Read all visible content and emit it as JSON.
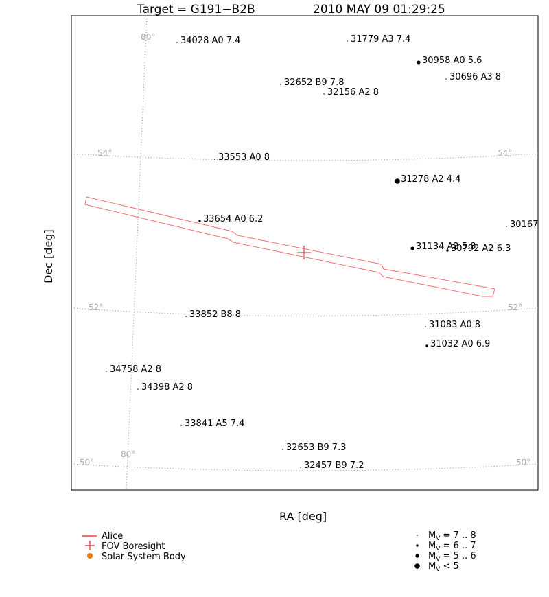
{
  "chart_data": {
    "type": "scatter",
    "title": {
      "target": "Target = G191−B2B",
      "datetime": "2010 MAY 09 01:29:25"
    },
    "xlabel": "RA [deg]",
    "ylabel": "Dec [deg]",
    "grid": true,
    "grid_labels": {
      "ra": [
        "80°",
        "80°"
      ],
      "dec": [
        "54°",
        "54°",
        "52°",
        "52°",
        "50°",
        "50°"
      ]
    },
    "stars": [
      {
        "label": "34028 A0 7.4",
        "mag": 7.4
      },
      {
        "label": "31779 A3 7.4",
        "mag": 7.4
      },
      {
        "label": "30958 A0 5.6",
        "mag": 5.6
      },
      {
        "label": "30696 A3 8",
        "mag": 8
      },
      {
        "label": "32652 B9 7.8",
        "mag": 7.8
      },
      {
        "label": "32156 A2 8",
        "mag": 8
      },
      {
        "label": "33553 A0 8",
        "mag": 8
      },
      {
        "label": "31278 A2 4.4",
        "mag": 4.4
      },
      {
        "label": "33654 A0 6.2",
        "mag": 6.2
      },
      {
        "label": "30167",
        "mag": 8
      },
      {
        "label": "31134 A2 5.8",
        "mag": 5.8
      },
      {
        "label": "30792 A2 6.3",
        "mag": 6.3
      },
      {
        "label": "33852 B8 8",
        "mag": 8
      },
      {
        "label": "31083 A0 8",
        "mag": 8
      },
      {
        "label": "31032 A0 6.9",
        "mag": 6.9
      },
      {
        "label": "34758 A2 8",
        "mag": 8
      },
      {
        "label": "34398 A2 8",
        "mag": 8
      },
      {
        "label": "33841 A5 7.4",
        "mag": 7.4
      },
      {
        "label": "32653 B9 7.3",
        "mag": 7.3
      },
      {
        "label": "32457 B9 7.2",
        "mag": 7.2
      }
    ],
    "legend": {
      "alice": "Alice",
      "boresight": "FOV Boresight",
      "solar": "Solar System Body",
      "mag_rows": [
        {
          "range": "= 7 .. 8"
        },
        {
          "range": "= 6 .. 7"
        },
        {
          "range": "= 5 .. 6"
        },
        {
          "range": "< 5"
        }
      ],
      "mag_symbol": "M",
      "mag_sub": "V"
    },
    "colors": {
      "alice": "#f07070",
      "boresight": "#e05050",
      "solar": "#f07800",
      "grid": "#888888",
      "grid_label": "#a8a8a8"
    }
  }
}
